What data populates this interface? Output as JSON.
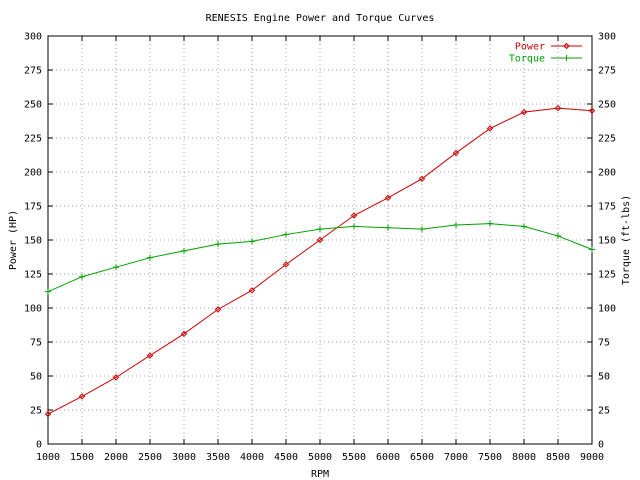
{
  "chart_data": {
    "type": "line",
    "title": "RENESIS Engine Power and Torque Curves",
    "xlabel": "RPM",
    "ylabel": "Power (HP)",
    "y2label": "Torque (ft-lbs)",
    "xlim": [
      1000,
      9000
    ],
    "ylim": [
      0,
      300
    ],
    "y2lim": [
      0,
      300
    ],
    "x_ticks": [
      1000,
      1500,
      2000,
      2500,
      3000,
      3500,
      4000,
      4500,
      5000,
      5500,
      6000,
      6500,
      7000,
      7500,
      8000,
      8500,
      9000
    ],
    "y_ticks": [
      0,
      25,
      50,
      75,
      100,
      125,
      150,
      175,
      200,
      225,
      250,
      275,
      300
    ],
    "grid": true,
    "legend_position": "top-right",
    "series": [
      {
        "name": "Power",
        "color": "#cc0000",
        "marker": "diamond",
        "x": [
          1000,
          1500,
          2000,
          2500,
          3000,
          3500,
          4000,
          4500,
          5000,
          5500,
          6000,
          6500,
          7000,
          7500,
          8000,
          8500,
          9000
        ],
        "values": [
          22,
          35,
          49,
          65,
          81,
          99,
          113,
          132,
          150,
          168,
          181,
          195,
          214,
          232,
          244,
          247,
          245
        ]
      },
      {
        "name": "Torque",
        "color": "#00a000",
        "marker": "plus",
        "x": [
          1000,
          1500,
          2000,
          2500,
          3000,
          3500,
          4000,
          4500,
          5000,
          5500,
          6000,
          6500,
          7000,
          7500,
          8000,
          8500,
          9000
        ],
        "values": [
          112,
          123,
          130,
          137,
          142,
          147,
          149,
          154,
          158,
          160,
          159,
          158,
          161,
          162,
          160,
          153,
          143
        ]
      }
    ]
  }
}
